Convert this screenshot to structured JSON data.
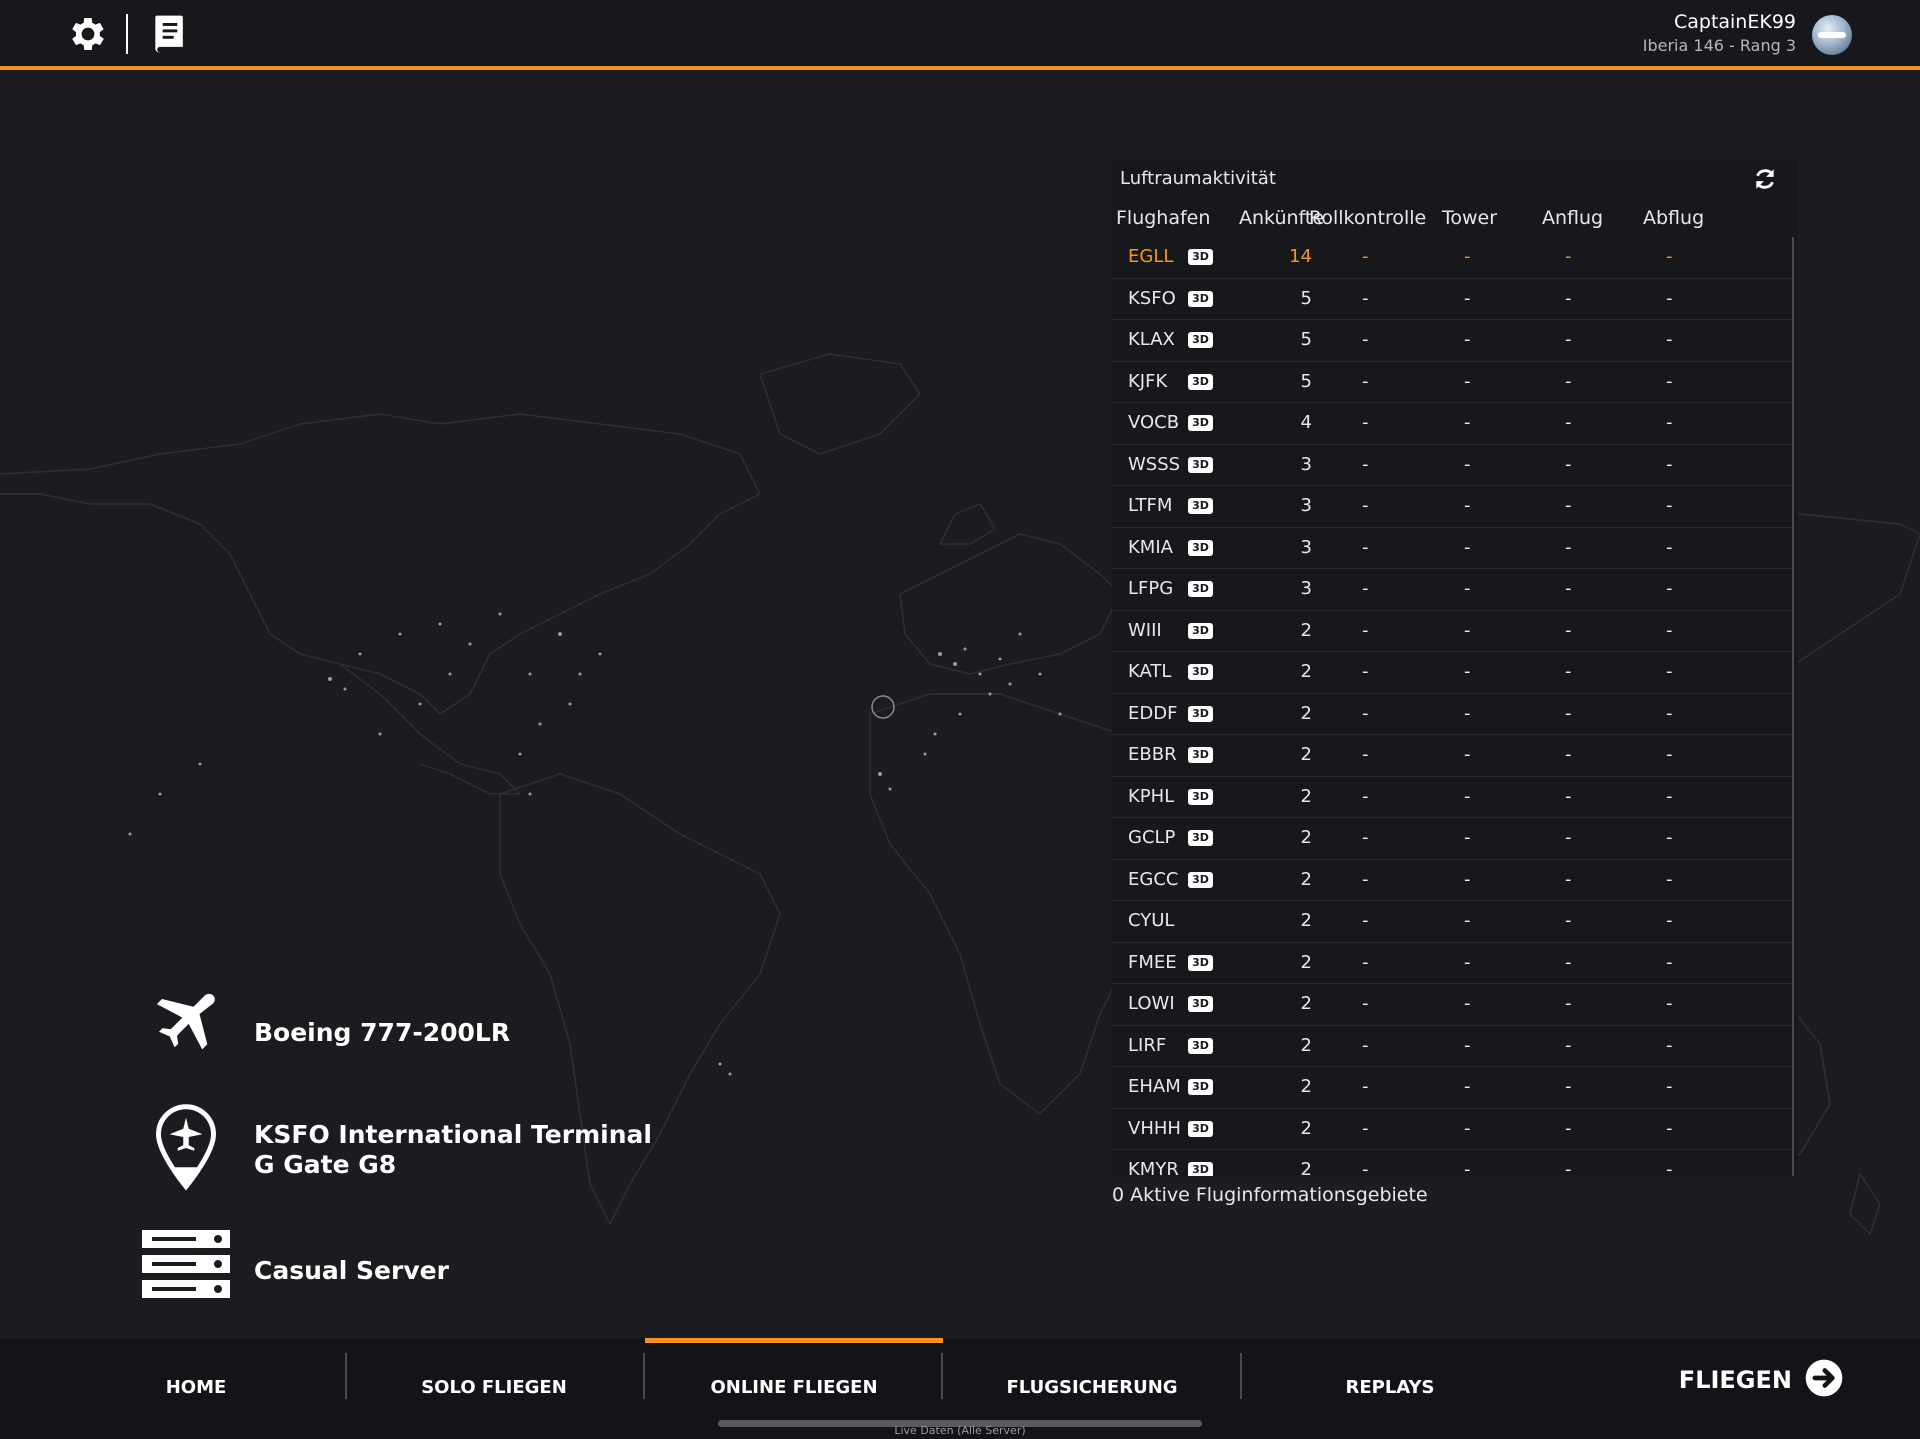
{
  "header": {
    "user_name": "CaptainEK99",
    "user_sub": "Iberia 146 - Rang 3"
  },
  "panel": {
    "title": "Luftraumaktivität",
    "columns": [
      "Flughafen",
      "Ankünfte",
      "Rollkontrolle",
      "Tower",
      "Anflug",
      "Abflug"
    ],
    "rows": [
      {
        "icao": "EGLL",
        "has3d": true,
        "arrivals": "14",
        "c1": "-",
        "c2": "-",
        "c3": "-",
        "c4": "-",
        "highlight": true
      },
      {
        "icao": "KSFO",
        "has3d": true,
        "arrivals": "5",
        "c1": "-",
        "c2": "-",
        "c3": "-",
        "c4": "-"
      },
      {
        "icao": "KLAX",
        "has3d": true,
        "arrivals": "5",
        "c1": "-",
        "c2": "-",
        "c3": "-",
        "c4": "-"
      },
      {
        "icao": "KJFK",
        "has3d": true,
        "arrivals": "5",
        "c1": "-",
        "c2": "-",
        "c3": "-",
        "c4": "-"
      },
      {
        "icao": "VOCB",
        "has3d": true,
        "arrivals": "4",
        "c1": "-",
        "c2": "-",
        "c3": "-",
        "c4": "-"
      },
      {
        "icao": "WSSS",
        "has3d": true,
        "arrivals": "3",
        "c1": "-",
        "c2": "-",
        "c3": "-",
        "c4": "-"
      },
      {
        "icao": "LTFM",
        "has3d": true,
        "arrivals": "3",
        "c1": "-",
        "c2": "-",
        "c3": "-",
        "c4": "-"
      },
      {
        "icao": "KMIA",
        "has3d": true,
        "arrivals": "3",
        "c1": "-",
        "c2": "-",
        "c3": "-",
        "c4": "-"
      },
      {
        "icao": "LFPG",
        "has3d": true,
        "arrivals": "3",
        "c1": "-",
        "c2": "-",
        "c3": "-",
        "c4": "-"
      },
      {
        "icao": "WIII",
        "has3d": true,
        "arrivals": "2",
        "c1": "-",
        "c2": "-",
        "c3": "-",
        "c4": "-"
      },
      {
        "icao": "KATL",
        "has3d": true,
        "arrivals": "2",
        "c1": "-",
        "c2": "-",
        "c3": "-",
        "c4": "-"
      },
      {
        "icao": "EDDF",
        "has3d": true,
        "arrivals": "2",
        "c1": "-",
        "c2": "-",
        "c3": "-",
        "c4": "-"
      },
      {
        "icao": "EBBR",
        "has3d": true,
        "arrivals": "2",
        "c1": "-",
        "c2": "-",
        "c3": "-",
        "c4": "-"
      },
      {
        "icao": "KPHL",
        "has3d": true,
        "arrivals": "2",
        "c1": "-",
        "c2": "-",
        "c3": "-",
        "c4": "-"
      },
      {
        "icao": "GCLP",
        "has3d": true,
        "arrivals": "2",
        "c1": "-",
        "c2": "-",
        "c3": "-",
        "c4": "-"
      },
      {
        "icao": "EGCC",
        "has3d": true,
        "arrivals": "2",
        "c1": "-",
        "c2": "-",
        "c3": "-",
        "c4": "-"
      },
      {
        "icao": "CYUL",
        "has3d": false,
        "arrivals": "2",
        "c1": "-",
        "c2": "-",
        "c3": "-",
        "c4": "-"
      },
      {
        "icao": "FMEE",
        "has3d": true,
        "arrivals": "2",
        "c1": "-",
        "c2": "-",
        "c3": "-",
        "c4": "-"
      },
      {
        "icao": "LOWI",
        "has3d": true,
        "arrivals": "2",
        "c1": "-",
        "c2": "-",
        "c3": "-",
        "c4": "-"
      },
      {
        "icao": "LIRF",
        "has3d": true,
        "arrivals": "2",
        "c1": "-",
        "c2": "-",
        "c3": "-",
        "c4": "-"
      },
      {
        "icao": "EHAM",
        "has3d": true,
        "arrivals": "2",
        "c1": "-",
        "c2": "-",
        "c3": "-",
        "c4": "-"
      },
      {
        "icao": "VHHH",
        "has3d": true,
        "arrivals": "2",
        "c1": "-",
        "c2": "-",
        "c3": "-",
        "c4": "-"
      },
      {
        "icao": "KMYR",
        "has3d": true,
        "arrivals": "2",
        "c1": "-",
        "c2": "-",
        "c3": "-",
        "c4": "-"
      }
    ],
    "badge_label": "3D",
    "fir_text": "0 Aktive Fluginformationsgebiete"
  },
  "info": {
    "aircraft": "Boeing 777-200LR",
    "gate_line1": "KSFO International Terminal",
    "gate_line2": "G Gate G8",
    "server": "Casual Server"
  },
  "nav": {
    "items": [
      "HOME",
      "SOLO FLIEGEN",
      "ONLINE FLIEGEN",
      "FLUGSICHERUNG",
      "REPLAYS"
    ],
    "active_index": 2,
    "fly_label": "FLIEGEN",
    "status_text": "Live Daten (Alle Server)"
  },
  "colors": {
    "accent": "#f7941d",
    "background": "#1b1c20",
    "panel": "#17181c"
  }
}
